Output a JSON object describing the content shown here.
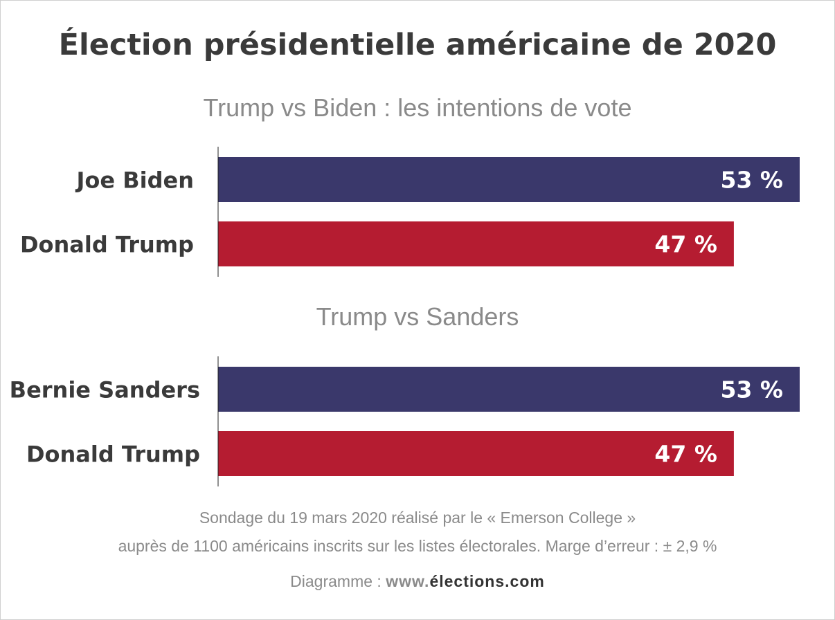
{
  "chart_data": [
    {
      "type": "bar",
      "orientation": "horizontal",
      "title": "Trump vs Biden : les intentions de vote",
      "categories": [
        "Joe Biden",
        "Donald Trump"
      ],
      "values": [
        53,
        47
      ],
      "value_labels": [
        "53 %",
        "47 %"
      ],
      "colors": [
        "#3a386b",
        "#b51c31"
      ],
      "xlim": [
        0,
        53
      ],
      "grid": false
    },
    {
      "type": "bar",
      "orientation": "horizontal",
      "title": "Trump vs Sanders",
      "categories": [
        "Bernie Sanders",
        "Donald Trump"
      ],
      "values": [
        53,
        47
      ],
      "value_labels": [
        "53 %",
        "47 %"
      ],
      "colors": [
        "#3a386b",
        "#b51c31"
      ],
      "xlim": [
        0,
        53
      ],
      "grid": false
    }
  ],
  "header": {
    "title": "Élection présidentielle américaine de 2020"
  },
  "footer": {
    "line1": "Sondage du 19 mars 2020 réalisé par le « Emerson College »",
    "line2": "auprès de 1100 américains inscrits sur les listes électorales. Marge d’erreur : ± 2,9 %",
    "credit_prefix": "Diagramme : ",
    "credit_www": "www.",
    "credit_domain": "élections.com"
  }
}
